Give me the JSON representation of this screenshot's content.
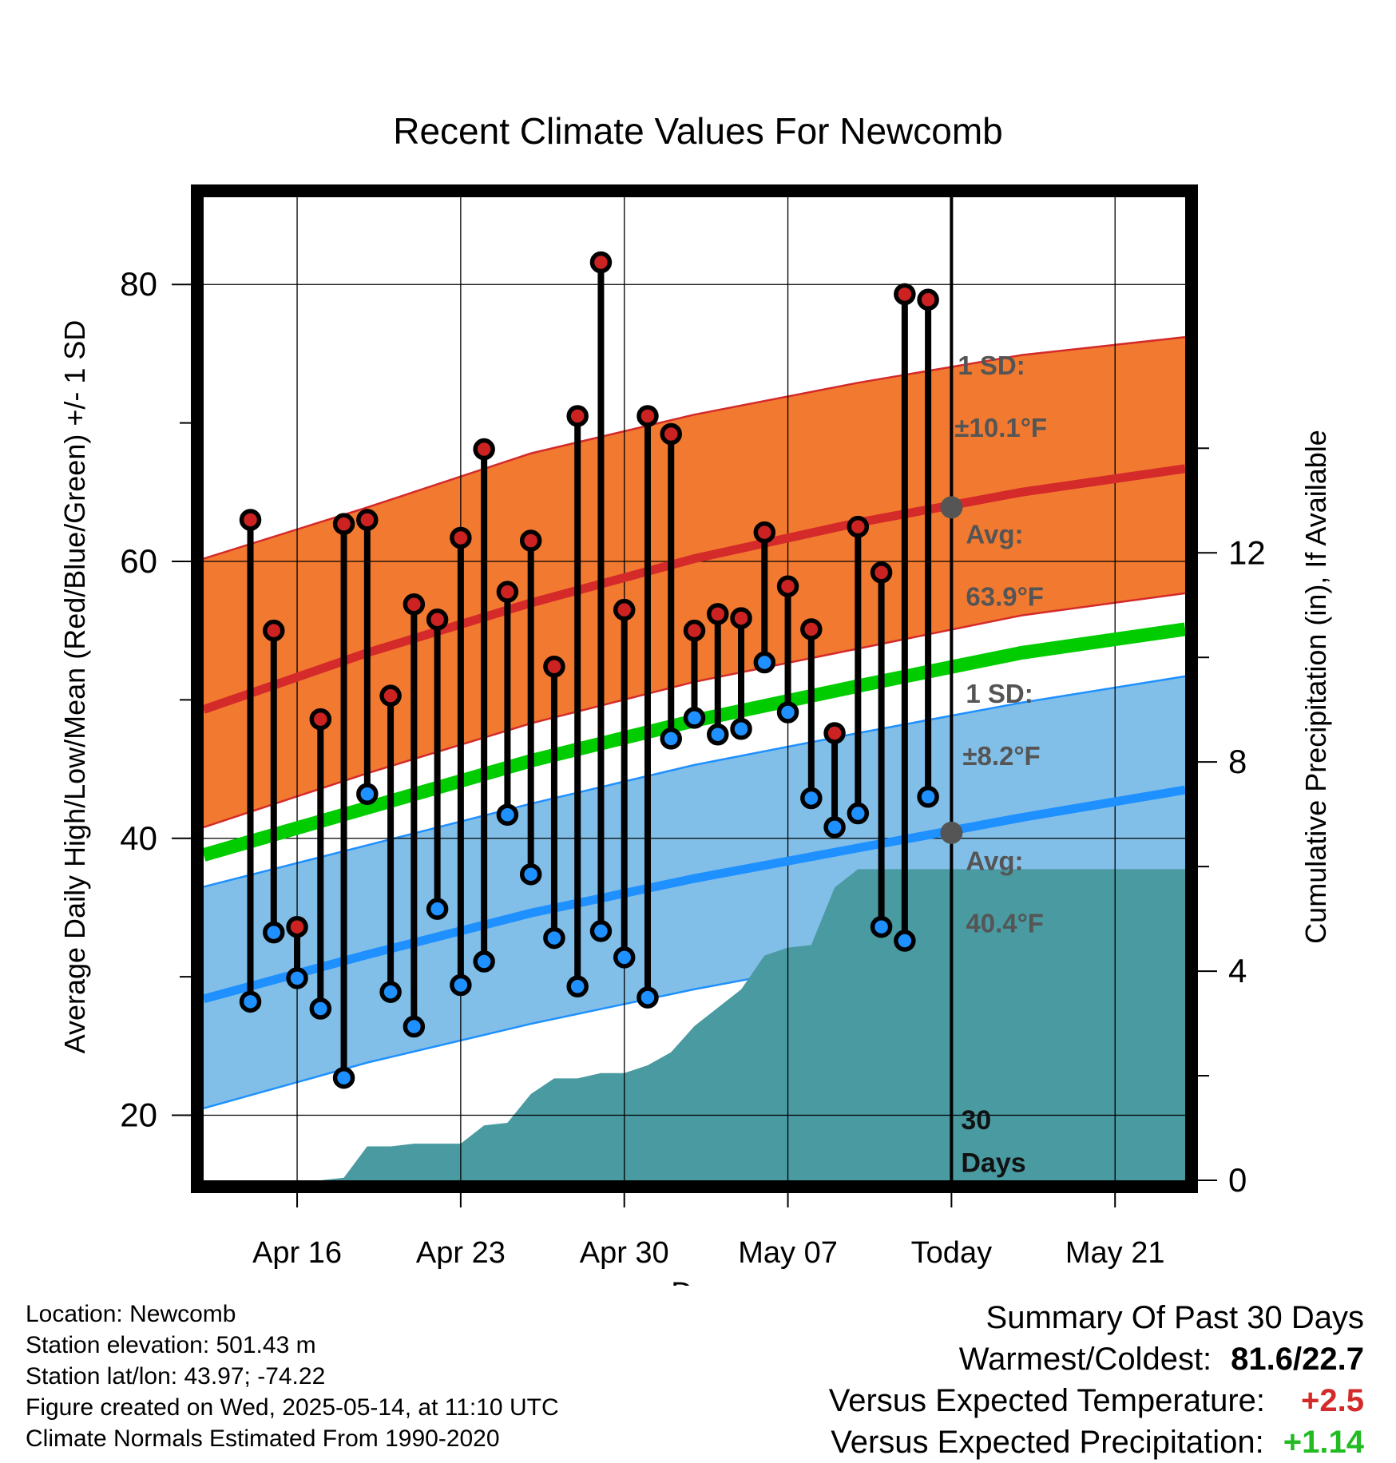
{
  "chart_data": {
    "type": "line",
    "title": "Recent Climate Values For Newcomb",
    "xlabel": "Day",
    "ylabel": "Average Daily High/Low/Mean (Red/Blue/Green) +/- 1 SD",
    "y2label": "Cumulative Precipitation (in), If Available",
    "ylim": [
      15.3,
      86.3
    ],
    "y_ticks": [
      "20",
      "40",
      "60",
      "80"
    ],
    "y2lim": [
      0,
      18.8
    ],
    "y2_ticks": [
      "0",
      "4",
      "8",
      "12"
    ],
    "xlim": [
      "2025-04-12",
      "2025-05-24"
    ],
    "x_ticks": [
      {
        "date": "2025-04-16",
        "label": "Apr 16"
      },
      {
        "date": "2025-04-23",
        "label": "Apr 23"
      },
      {
        "date": "2025-04-30",
        "label": "Apr 30"
      },
      {
        "date": "2025-05-07",
        "label": "May 07"
      },
      {
        "date": "2025-05-14",
        "label": "Today"
      },
      {
        "date": "2025-05-21",
        "label": "May 21"
      }
    ],
    "grid": true,
    "normals": {
      "dates": [
        "2025-04-12",
        "2025-04-19",
        "2025-04-26",
        "2025-05-03",
        "2025-05-10",
        "2025-05-17",
        "2025-05-24"
      ],
      "high_avg": [
        49.3,
        53.4,
        57.0,
        60.2,
        62.8,
        65.0,
        66.7
      ],
      "high_upper": [
        60.2,
        63.9,
        67.8,
        70.6,
        72.9,
        74.9,
        76.2
      ],
      "high_lower": [
        40.8,
        44.7,
        48.3,
        51.3,
        53.7,
        56.1,
        57.7
      ],
      "mean_avg": [
        38.8,
        42.2,
        45.6,
        48.5,
        51.0,
        53.4,
        55.1
      ],
      "low_avg": [
        28.4,
        31.6,
        34.6,
        37.1,
        39.3,
        41.5,
        43.5
      ],
      "low_upper": [
        36.5,
        39.5,
        42.5,
        45.3,
        47.6,
        49.8,
        51.7
      ],
      "low_lower": [
        20.5,
        23.8,
        26.6,
        29.1,
        31.3,
        33.3,
        36.6
      ]
    },
    "series": [
      {
        "name": "High",
        "color": "#cc2222",
        "dates": [
          "2025-04-14",
          "2025-04-15",
          "2025-04-16",
          "2025-04-17",
          "2025-04-18",
          "2025-04-19",
          "2025-04-20",
          "2025-04-21",
          "2025-04-22",
          "2025-04-23",
          "2025-04-24",
          "2025-04-25",
          "2025-04-26",
          "2025-04-27",
          "2025-04-28",
          "2025-04-29",
          "2025-04-30",
          "2025-05-01",
          "2025-05-02",
          "2025-05-03",
          "2025-05-04",
          "2025-05-05",
          "2025-05-06",
          "2025-05-07",
          "2025-05-08",
          "2025-05-09",
          "2025-05-10",
          "2025-05-11",
          "2025-05-12",
          "2025-05-13"
        ],
        "values": [
          63.0,
          55.0,
          33.6,
          48.6,
          62.7,
          63.0,
          50.3,
          56.9,
          55.8,
          61.7,
          68.1,
          57.8,
          61.5,
          52.4,
          70.5,
          81.6,
          56.5,
          70.5,
          69.2,
          55.0,
          56.2,
          55.9,
          62.1,
          58.2,
          55.1,
          47.6,
          62.5,
          59.2,
          79.3,
          78.9
        ]
      },
      {
        "name": "Low",
        "color": "#2090ee",
        "dates": [
          "2025-04-14",
          "2025-04-15",
          "2025-04-16",
          "2025-04-17",
          "2025-04-18",
          "2025-04-19",
          "2025-04-20",
          "2025-04-21",
          "2025-04-22",
          "2025-04-23",
          "2025-04-24",
          "2025-04-25",
          "2025-04-26",
          "2025-04-27",
          "2025-04-28",
          "2025-04-29",
          "2025-04-30",
          "2025-05-01",
          "2025-05-02",
          "2025-05-03",
          "2025-05-04",
          "2025-05-05",
          "2025-05-06",
          "2025-05-07",
          "2025-05-08",
          "2025-05-09",
          "2025-05-10",
          "2025-05-11",
          "2025-05-12",
          "2025-05-13"
        ],
        "values": [
          28.2,
          33.2,
          29.9,
          27.7,
          22.7,
          43.2,
          28.9,
          26.4,
          34.9,
          29.4,
          31.1,
          41.7,
          37.4,
          32.8,
          29.3,
          33.3,
          31.4,
          28.5,
          47.2,
          48.7,
          47.5,
          47.9,
          52.7,
          49.1,
          42.9,
          40.8,
          41.8,
          33.6,
          32.6,
          43.0
        ]
      }
    ],
    "precipitation": {
      "dates": [
        "2025-04-12",
        "2025-04-14",
        "2025-04-16",
        "2025-04-17",
        "2025-04-18",
        "2025-04-19",
        "2025-04-20",
        "2025-04-21",
        "2025-04-22",
        "2025-04-23",
        "2025-04-24",
        "2025-04-25",
        "2025-04-26",
        "2025-04-27",
        "2025-04-28",
        "2025-04-29",
        "2025-04-30",
        "2025-05-01",
        "2025-05-02",
        "2025-05-03",
        "2025-05-04",
        "2025-05-05",
        "2025-05-06",
        "2025-05-07",
        "2025-05-08",
        "2025-05-09",
        "2025-05-10",
        "2025-05-11",
        "2025-05-24"
      ],
      "values": [
        0.0,
        0.0,
        0.0,
        0.0,
        0.05,
        0.65,
        0.65,
        0.7,
        0.7,
        0.7,
        1.05,
        1.1,
        1.65,
        1.95,
        1.95,
        2.05,
        2.05,
        2.2,
        2.45,
        2.95,
        3.3,
        3.65,
        4.3,
        4.45,
        4.5,
        5.6,
        5.95,
        5.95,
        5.95
      ],
      "color": "#4a9aa2"
    },
    "annotations": {
      "high_sd_label": "1 SD:",
      "high_sd_value": "±10.1°F",
      "high_avg_label": "Avg:",
      "high_avg_value": "63.9°F",
      "low_sd_label": "1 SD:",
      "low_sd_value": "±8.2°F",
      "low_avg_label": "Avg:",
      "low_avg_value": "40.4°F",
      "days_line1": "30",
      "days_line2": "Days"
    },
    "colors": {
      "high_band": "#f27a30",
      "high_line": "#d42a2a",
      "low_band": "#82bfe8",
      "low_line": "#1e90ff",
      "mean_line": "#00cc00",
      "annotation_text": "#555555"
    }
  },
  "info": {
    "location": "Location: Newcomb",
    "elevation": "Station elevation: 501.43 m",
    "latlon": "Station lat/lon: 43.97; -74.22",
    "created": "Figure created on Wed, 2025-05-14, at 11:10 UTC",
    "normals": "Climate Normals Estimated From 1990-2020"
  },
  "summary": {
    "heading": "Summary Of Past 30 Days",
    "warmest_label": "Warmest/Coldest:",
    "warmest_value": "81.6/22.7",
    "temp_label": "Versus Expected Temperature:",
    "temp_value": "+2.5",
    "temp_color": "#d42a2a",
    "precip_label": "Versus Expected Precipitation:",
    "precip_value": "+1.14",
    "precip_color": "#22bb22"
  }
}
